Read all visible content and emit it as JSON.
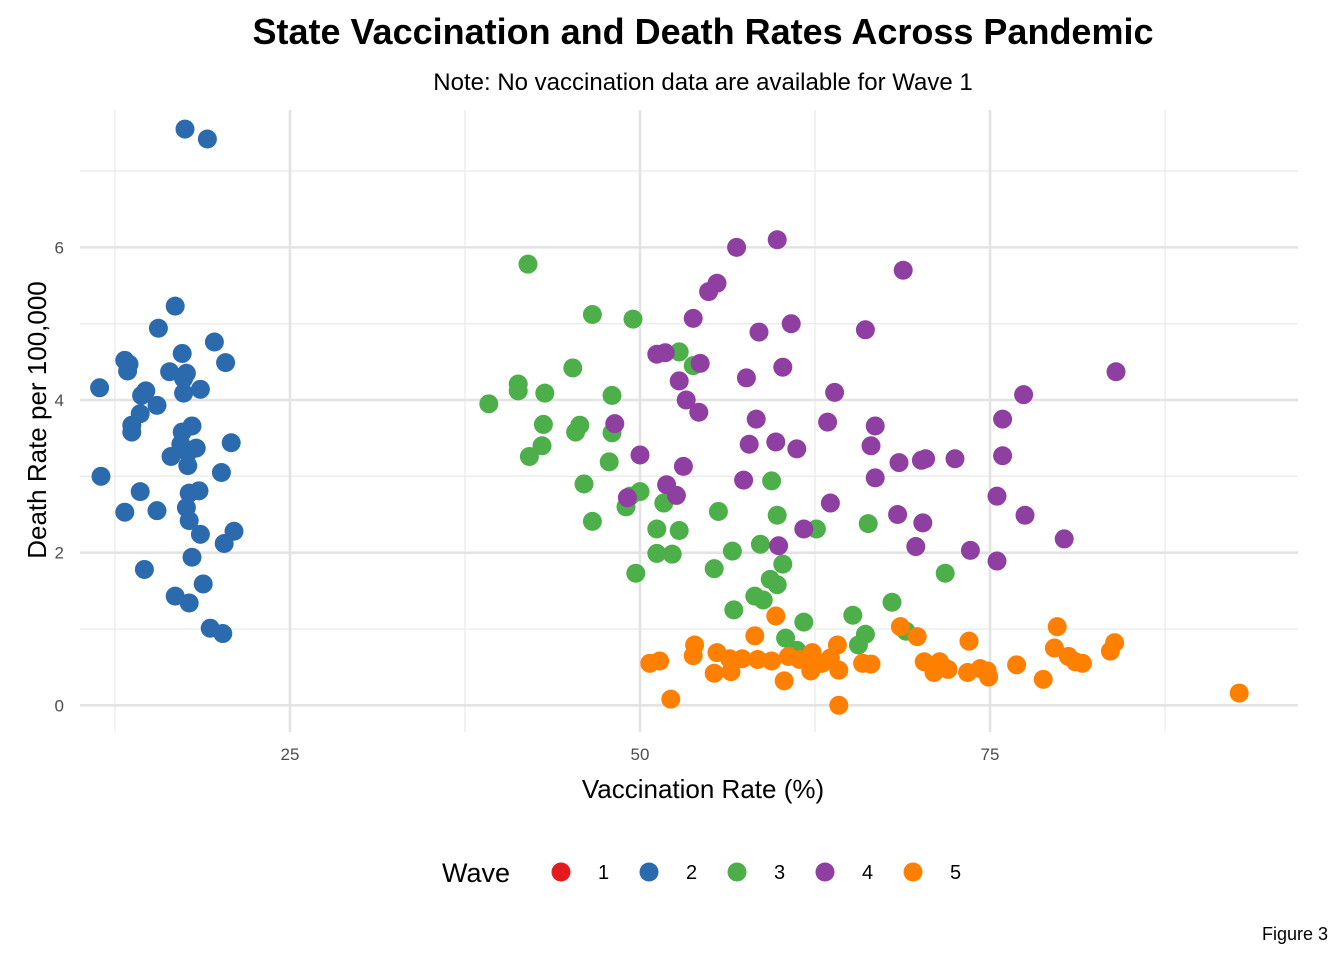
{
  "chart_data": {
    "type": "scatter",
    "title": "State Vaccination and Death Rates Across Pandemic",
    "subtitle": "Note: No vaccination data are available for Wave 1",
    "caption": "Figure 3",
    "xlabel": "Vaccination Rate (%)",
    "ylabel": "Death Rate per 100,000",
    "xlim": [
      10,
      97
    ],
    "ylim": [
      -0.35,
      7.8
    ],
    "x_ticks": [
      25,
      50,
      75
    ],
    "x_tick_labels": [
      "25",
      "50",
      "75"
    ],
    "x_minor_ticks": [
      12.5,
      37.5,
      62.5,
      87.5
    ],
    "y_ticks": [
      0,
      2,
      4,
      6
    ],
    "y_tick_labels": [
      "0",
      "2",
      "4",
      "6"
    ],
    "y_minor_ticks": [
      1,
      3,
      5,
      7
    ],
    "grid": true,
    "legend": {
      "title": "Wave",
      "position": "bottom"
    },
    "series": [
      {
        "name": "1",
        "color": "#E41A1C",
        "points": []
      },
      {
        "name": "2",
        "color": "#2B6BAD",
        "points": [
          [
            17.5,
            7.55
          ],
          [
            19.1,
            7.42
          ],
          [
            16.8,
            5.23
          ],
          [
            15.6,
            4.94
          ],
          [
            19.6,
            4.76
          ],
          [
            13.2,
            4.52
          ],
          [
            13.5,
            4.47
          ],
          [
            17.3,
            4.61
          ],
          [
            20.4,
            4.49
          ],
          [
            13.4,
            4.38
          ],
          [
            16.4,
            4.37
          ],
          [
            17.6,
            4.35
          ],
          [
            17.4,
            4.28
          ],
          [
            11.4,
            4.16
          ],
          [
            14.7,
            4.12
          ],
          [
            18.6,
            4.14
          ],
          [
            14.4,
            4.06
          ],
          [
            17.4,
            4.09
          ],
          [
            15.5,
            3.93
          ],
          [
            14.3,
            3.82
          ],
          [
            13.7,
            3.67
          ],
          [
            18.0,
            3.66
          ],
          [
            17.3,
            3.58
          ],
          [
            13.7,
            3.58
          ],
          [
            20.8,
            3.44
          ],
          [
            17.2,
            3.42
          ],
          [
            18.3,
            3.37
          ],
          [
            16.5,
            3.26
          ],
          [
            17.7,
            3.31
          ],
          [
            17.7,
            3.14
          ],
          [
            20.1,
            3.05
          ],
          [
            11.5,
            3.0
          ],
          [
            14.3,
            2.8
          ],
          [
            18.5,
            2.81
          ],
          [
            17.8,
            2.78
          ],
          [
            17.6,
            2.59
          ],
          [
            13.2,
            2.53
          ],
          [
            15.5,
            2.55
          ],
          [
            17.8,
            2.42
          ],
          [
            21.0,
            2.28
          ],
          [
            18.6,
            2.24
          ],
          [
            20.3,
            2.12
          ],
          [
            18.0,
            1.94
          ],
          [
            14.6,
            1.78
          ],
          [
            18.8,
            1.59
          ],
          [
            16.8,
            1.43
          ],
          [
            17.8,
            1.34
          ],
          [
            19.3,
            1.01
          ],
          [
            20.2,
            0.94
          ]
        ]
      },
      {
        "name": "3",
        "color": "#4DAF4A",
        "points": [
          [
            42.0,
            5.78
          ],
          [
            46.6,
            5.12
          ],
          [
            49.5,
            5.06
          ],
          [
            52.8,
            4.63
          ],
          [
            53.8,
            4.45
          ],
          [
            45.2,
            4.42
          ],
          [
            41.3,
            4.21
          ],
          [
            41.3,
            4.12
          ],
          [
            43.2,
            4.09
          ],
          [
            48.0,
            4.06
          ],
          [
            39.2,
            3.95
          ],
          [
            43.1,
            3.68
          ],
          [
            45.7,
            3.67
          ],
          [
            45.4,
            3.58
          ],
          [
            48.0,
            3.57
          ],
          [
            43.0,
            3.4
          ],
          [
            42.1,
            3.26
          ],
          [
            47.8,
            3.19
          ],
          [
            51.7,
            2.65
          ],
          [
            46.0,
            2.9
          ],
          [
            59.4,
            2.94
          ],
          [
            49.3,
            2.74
          ],
          [
            50.0,
            2.8
          ],
          [
            49.0,
            2.6
          ],
          [
            46.6,
            2.41
          ],
          [
            51.2,
            2.31
          ],
          [
            52.8,
            2.29
          ],
          [
            55.6,
            2.54
          ],
          [
            59.8,
            2.49
          ],
          [
            66.3,
            2.38
          ],
          [
            62.6,
            2.31
          ],
          [
            58.6,
            2.11
          ],
          [
            56.6,
            2.02
          ],
          [
            51.2,
            1.99
          ],
          [
            52.3,
            1.98
          ],
          [
            60.2,
            1.85
          ],
          [
            55.3,
            1.79
          ],
          [
            49.7,
            1.73
          ],
          [
            71.8,
            1.73
          ],
          [
            59.3,
            1.65
          ],
          [
            59.8,
            1.58
          ],
          [
            58.2,
            1.43
          ],
          [
            58.8,
            1.38
          ],
          [
            68.0,
            1.35
          ],
          [
            56.7,
            1.25
          ],
          [
            65.2,
            1.18
          ],
          [
            61.7,
            1.09
          ],
          [
            60.4,
            0.88
          ],
          [
            66.1,
            0.93
          ],
          [
            69.0,
            0.97
          ],
          [
            61.2,
            0.72
          ],
          [
            65.6,
            0.79
          ]
        ]
      },
      {
        "name": "4",
        "color": "#8E3FA1",
        "points": [
          [
            59.8,
            6.1
          ],
          [
            56.9,
            6.0
          ],
          [
            68.8,
            5.7
          ],
          [
            55.5,
            5.53
          ],
          [
            54.9,
            5.42
          ],
          [
            53.8,
            5.07
          ],
          [
            60.8,
            5.0
          ],
          [
            58.5,
            4.89
          ],
          [
            66.1,
            4.92
          ],
          [
            51.2,
            4.6
          ],
          [
            51.8,
            4.62
          ],
          [
            54.3,
            4.48
          ],
          [
            60.2,
            4.43
          ],
          [
            84.0,
            4.37
          ],
          [
            52.8,
            4.25
          ],
          [
            57.6,
            4.29
          ],
          [
            77.4,
            4.07
          ],
          [
            63.9,
            4.1
          ],
          [
            53.3,
            4.0
          ],
          [
            54.2,
            3.84
          ],
          [
            58.3,
            3.75
          ],
          [
            75.9,
            3.75
          ],
          [
            63.4,
            3.71
          ],
          [
            66.8,
            3.66
          ],
          [
            48.2,
            3.69
          ],
          [
            57.8,
            3.42
          ],
          [
            59.7,
            3.45
          ],
          [
            61.2,
            3.36
          ],
          [
            66.5,
            3.4
          ],
          [
            50.0,
            3.28
          ],
          [
            70.1,
            3.21
          ],
          [
            70.4,
            3.23
          ],
          [
            72.5,
            3.23
          ],
          [
            75.9,
            3.27
          ],
          [
            68.5,
            3.18
          ],
          [
            53.1,
            3.13
          ],
          [
            57.4,
            2.95
          ],
          [
            66.8,
            2.98
          ],
          [
            51.9,
            2.89
          ],
          [
            52.6,
            2.75
          ],
          [
            49.1,
            2.72
          ],
          [
            63.6,
            2.65
          ],
          [
            75.5,
            2.74
          ],
          [
            68.4,
            2.5
          ],
          [
            77.5,
            2.49
          ],
          [
            70.2,
            2.39
          ],
          [
            61.7,
            2.31
          ],
          [
            80.3,
            2.18
          ],
          [
            59.9,
            2.09
          ],
          [
            69.7,
            2.08
          ],
          [
            73.6,
            2.03
          ],
          [
            75.5,
            1.89
          ]
        ]
      },
      {
        "name": "5",
        "color": "#FF7F00",
        "points": [
          [
            59.7,
            1.17
          ],
          [
            68.6,
            1.03
          ],
          [
            79.8,
            1.03
          ],
          [
            69.8,
            0.9
          ],
          [
            58.2,
            0.91
          ],
          [
            73.5,
            0.84
          ],
          [
            83.9,
            0.82
          ],
          [
            53.9,
            0.79
          ],
          [
            64.1,
            0.79
          ],
          [
            79.6,
            0.75
          ],
          [
            83.6,
            0.71
          ],
          [
            62.3,
            0.69
          ],
          [
            55.5,
            0.69
          ],
          [
            60.6,
            0.64
          ],
          [
            80.6,
            0.64
          ],
          [
            53.8,
            0.65
          ],
          [
            63.6,
            0.62
          ],
          [
            56.4,
            0.61
          ],
          [
            57.3,
            0.61
          ],
          [
            58.4,
            0.6
          ],
          [
            59.4,
            0.58
          ],
          [
            61.4,
            0.6
          ],
          [
            51.4,
            0.58
          ],
          [
            70.3,
            0.57
          ],
          [
            71.4,
            0.57
          ],
          [
            81.1,
            0.57
          ],
          [
            50.7,
            0.55
          ],
          [
            65.9,
            0.55
          ],
          [
            66.5,
            0.54
          ],
          [
            76.9,
            0.53
          ],
          [
            81.6,
            0.55
          ],
          [
            63.0,
            0.55
          ],
          [
            62.2,
            0.45
          ],
          [
            64.2,
            0.46
          ],
          [
            56.5,
            0.44
          ],
          [
            55.3,
            0.42
          ],
          [
            71.0,
            0.43
          ],
          [
            72.0,
            0.47
          ],
          [
            74.3,
            0.48
          ],
          [
            74.8,
            0.45
          ],
          [
            73.4,
            0.43
          ],
          [
            74.9,
            0.37
          ],
          [
            78.8,
            0.34
          ],
          [
            60.3,
            0.32
          ],
          [
            92.8,
            0.16
          ],
          [
            52.2,
            0.08
          ],
          [
            64.2,
            0.0
          ]
        ]
      }
    ]
  }
}
